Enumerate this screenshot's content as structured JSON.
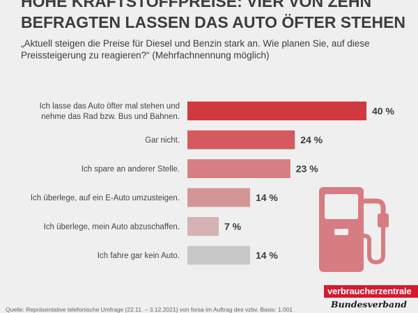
{
  "header": {
    "title": "Hohe Kraftstoffpreise: Vier von zehn Befragten lassen das Auto öfter stehen",
    "subtitle": "„Aktuell steigen die Preise für Diesel und Benzin stark an. Wie planen Sie, auf diese Preissteigerung zu reagieren?“ (Mehrfachnennung möglich)"
  },
  "chart_data": {
    "type": "bar",
    "orientation": "horizontal",
    "title": "Hohe Kraftstoffpreise: Vier von zehn Befragten lassen das Auto öfter stehen",
    "xlabel": "",
    "ylabel": "",
    "xlim": [
      0,
      40
    ],
    "value_suffix": " %",
    "categories": [
      [
        "Ich lasse das Auto öfter mal stehen und",
        "nehme das Rad bzw. Bus und Bahnen."
      ],
      [
        "Gar nicht."
      ],
      [
        "Ich spare an anderer Stelle."
      ],
      [
        "Ich überlege, auf ein E-Auto umzusteigen."
      ],
      [
        "Ich überlege, mein Auto abzuschaffen."
      ],
      [
        "Ich fahre gar kein Auto."
      ]
    ],
    "values": [
      40,
      24,
      23,
      14,
      7,
      14
    ],
    "value_labels": [
      "40 %",
      "24 %",
      "23 %",
      "14 %",
      "7 %",
      "14 %"
    ],
    "colors": [
      "#d0393f",
      "#d55a5f",
      "#d67e81",
      "#d49597",
      "#d3b3b3",
      "#c8c8c8"
    ]
  },
  "footer": {
    "source": "Quelle: Repräsentative telefonische Umfrage (22.11. – 3.12.2021) von forsa im Auftrag des vzbv. Basis: 1.001"
  },
  "logo": {
    "name": "verbraucherzentrale",
    "sub": "Bundesverband",
    "color": "#d6192e"
  },
  "icons": {
    "fuel_pump": "fuel-pump-icon",
    "pump_color": "#d77c80"
  }
}
